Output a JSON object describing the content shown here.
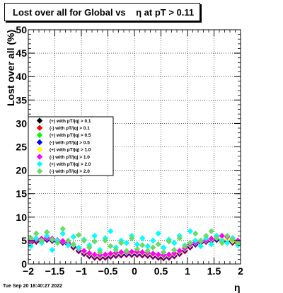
{
  "chart_data": {
    "type": "scatter",
    "title": "Lost over all for Global vs    η at pT > 0.11",
    "xlabel": "η",
    "ylabel": "Lost over all (%)",
    "xlim": [
      -2,
      2
    ],
    "ylim": [
      0,
      50
    ],
    "x_ticks": [
      -2,
      -1.5,
      -1,
      -0.5,
      0,
      0.5,
      1,
      1.5,
      2
    ],
    "x_tick_labels": [
      "−2",
      "−1.5",
      "−1",
      "−0.5",
      "0",
      "0.5",
      "1",
      "1.5",
      "2"
    ],
    "y_ticks": [
      0,
      5,
      10,
      15,
      20,
      25,
      30,
      35,
      40,
      45,
      50
    ],
    "y_tick_labels": [
      "0",
      "5",
      "10",
      "15",
      "20",
      "25",
      "30",
      "35",
      "40",
      "45",
      "50"
    ],
    "grid": true,
    "legend_position": "middle-left",
    "series": [
      {
        "name": "(+) with pT/|q| > 0.1",
        "color": "#000000",
        "marker": "diamond",
        "x": [
          -1.95,
          -1.85,
          -1.75,
          -1.65,
          -1.55,
          -1.45,
          -1.35,
          -1.25,
          -1.15,
          -1.05,
          -0.95,
          -0.85,
          -0.75,
          -0.65,
          -0.55,
          -0.45,
          -0.35,
          -0.25,
          -0.15,
          -0.05,
          0.05,
          0.15,
          0.25,
          0.35,
          0.45,
          0.55,
          0.65,
          0.75,
          0.85,
          0.95,
          1.05,
          1.15,
          1.25,
          1.35,
          1.45,
          1.55,
          1.65,
          1.75,
          1.85,
          1.95
        ],
        "y": [
          4.6,
          4.8,
          5.0,
          5.2,
          5.0,
          4.8,
          4.6,
          4.2,
          3.6,
          2.8,
          2.2,
          1.7,
          1.4,
          1.3,
          1.4,
          1.6,
          1.8,
          1.9,
          2.0,
          2.0,
          2.0,
          1.9,
          1.8,
          1.6,
          1.4,
          1.3,
          1.4,
          1.7,
          2.2,
          2.8,
          3.6,
          4.2,
          4.6,
          4.8,
          5.0,
          5.2,
          5.0,
          4.8,
          4.6,
          4.4
        ]
      },
      {
        "name": "(-) with pT/|q| > 0.1",
        "color": "#ff0000",
        "marker": "diamond",
        "x": [
          -1.95,
          -1.85,
          -1.75,
          -1.65,
          -1.55,
          -1.45,
          -1.35,
          -1.25,
          -1.15,
          -1.05,
          -0.95,
          -0.85,
          -0.75,
          -0.65,
          -0.55,
          -0.45,
          -0.35,
          -0.25,
          -0.15,
          -0.05,
          0.05,
          0.15,
          0.25,
          0.35,
          0.45,
          0.55,
          0.65,
          0.75,
          0.85,
          0.95,
          1.05,
          1.15,
          1.25,
          1.35,
          1.45,
          1.55,
          1.65,
          1.75,
          1.85,
          1.95
        ],
        "y": [
          4.5,
          4.7,
          4.9,
          5.1,
          4.9,
          4.7,
          4.5,
          4.1,
          3.5,
          2.7,
          2.1,
          1.6,
          1.3,
          1.2,
          1.3,
          1.5,
          1.7,
          1.8,
          1.9,
          1.9,
          1.9,
          1.8,
          1.7,
          1.5,
          1.3,
          1.2,
          1.3,
          1.6,
          2.1,
          2.7,
          3.5,
          4.1,
          4.5,
          4.7,
          4.9,
          5.1,
          4.9,
          4.7,
          4.5,
          4.3
        ]
      },
      {
        "name": "(+) with pT/|q| > 0.5",
        "color": "#00ff00",
        "marker": "diamond",
        "x": [
          -1.95,
          -1.85,
          -1.75,
          -1.65,
          -1.55,
          -1.45,
          -1.35,
          -1.25,
          -1.15,
          -1.05,
          -0.95,
          -0.85,
          -0.75,
          -0.65,
          -0.55,
          -0.45,
          -0.35,
          -0.25,
          -0.15,
          -0.05,
          0.05,
          0.15,
          0.25,
          0.35,
          0.45,
          0.55,
          0.65,
          0.75,
          0.85,
          0.95,
          1.05,
          1.15,
          1.25,
          1.35,
          1.45,
          1.55,
          1.65,
          1.75,
          1.85,
          1.95
        ],
        "y": [
          4.8,
          5.0,
          5.1,
          5.3,
          5.1,
          4.9,
          4.7,
          4.3,
          3.8,
          3.0,
          2.4,
          1.9,
          1.6,
          1.5,
          1.6,
          1.8,
          2.0,
          2.1,
          2.2,
          2.2,
          2.2,
          2.1,
          2.0,
          1.8,
          1.6,
          1.5,
          1.6,
          1.9,
          2.4,
          3.0,
          3.8,
          4.3,
          4.7,
          4.9,
          5.1,
          5.3,
          5.1,
          5.0,
          4.8,
          4.6
        ]
      },
      {
        "name": "(-) with pT/|q| > 0.5",
        "color": "#0000ff",
        "marker": "diamond",
        "x": [
          -1.95,
          -1.85,
          -1.75,
          -1.65,
          -1.55,
          -1.45,
          -1.35,
          -1.25,
          -1.15,
          -1.05,
          -0.95,
          -0.85,
          -0.75,
          -0.65,
          -0.55,
          -0.45,
          -0.35,
          -0.25,
          -0.15,
          -0.05,
          0.05,
          0.15,
          0.25,
          0.35,
          0.45,
          0.55,
          0.65,
          0.75,
          0.85,
          0.95,
          1.05,
          1.15,
          1.25,
          1.35,
          1.45,
          1.55,
          1.65,
          1.75,
          1.85,
          1.95
        ],
        "y": [
          4.7,
          4.9,
          5.0,
          5.2,
          5.0,
          4.8,
          4.6,
          4.2,
          3.7,
          2.9,
          2.3,
          1.8,
          1.5,
          1.4,
          1.5,
          1.7,
          1.9,
          2.0,
          2.1,
          2.1,
          2.1,
          2.0,
          1.9,
          1.7,
          1.5,
          1.4,
          1.5,
          1.8,
          2.3,
          2.9,
          3.7,
          4.2,
          4.6,
          4.8,
          5.0,
          5.2,
          5.0,
          4.9,
          4.7,
          4.5
        ]
      },
      {
        "name": "(+) with pT/|q| > 1.0",
        "color": "#ffff00",
        "marker": "diamond",
        "x": [
          -1.95,
          -1.85,
          -1.75,
          -1.65,
          -1.55,
          -1.45,
          -1.35,
          -1.25,
          -1.15,
          -1.05,
          -0.95,
          -0.85,
          -0.75,
          -0.65,
          -0.55,
          -0.45,
          -0.35,
          -0.25,
          -0.15,
          -0.05,
          0.05,
          0.15,
          0.25,
          0.35,
          0.45,
          0.55,
          0.65,
          0.75,
          0.85,
          0.95,
          1.05,
          1.15,
          1.25,
          1.35,
          1.45,
          1.55,
          1.65,
          1.75,
          1.85,
          1.95
        ],
        "y": [
          4.9,
          5.2,
          5.3,
          5.5,
          5.2,
          5.0,
          4.8,
          4.5,
          4.0,
          3.2,
          2.6,
          2.1,
          1.8,
          1.7,
          1.8,
          2.0,
          2.2,
          2.3,
          2.4,
          2.4,
          2.4,
          2.3,
          2.2,
          2.0,
          1.8,
          1.7,
          1.8,
          2.1,
          2.6,
          3.2,
          4.0,
          4.5,
          4.8,
          5.0,
          5.2,
          5.5,
          5.3,
          5.2,
          4.9,
          4.7
        ]
      },
      {
        "name": "(-) with pT/|q| > 1.0",
        "color": "#ff00ff",
        "marker": "diamond",
        "x": [
          -1.95,
          -1.85,
          -1.75,
          -1.65,
          -1.55,
          -1.45,
          -1.35,
          -1.25,
          -1.15,
          -1.05,
          -0.95,
          -0.85,
          -0.75,
          -0.65,
          -0.55,
          -0.45,
          -0.35,
          -0.25,
          -0.15,
          -0.05,
          0.05,
          0.15,
          0.25,
          0.35,
          0.45,
          0.55,
          0.65,
          0.75,
          0.85,
          0.95,
          1.05,
          1.15,
          1.25,
          1.35,
          1.45,
          1.55,
          1.65,
          1.75,
          1.85,
          1.95
        ],
        "y": [
          5.0,
          5.3,
          5.4,
          5.6,
          5.4,
          5.1,
          4.9,
          4.6,
          4.2,
          3.4,
          2.8,
          2.3,
          2.0,
          1.9,
          2.0,
          2.2,
          2.4,
          2.5,
          2.6,
          2.6,
          2.6,
          2.5,
          2.4,
          2.2,
          2.0,
          1.9,
          2.0,
          2.3,
          2.8,
          3.4,
          4.2,
          4.6,
          4.9,
          5.1,
          5.4,
          5.9,
          6.0,
          5.8,
          5.5,
          5.0
        ]
      },
      {
        "name": "(+) with pT/|q| > 2.0",
        "color": "#00ffff",
        "marker": "diamond",
        "x": [
          -1.95,
          -1.85,
          -1.75,
          -1.65,
          -1.55,
          -1.45,
          -1.35,
          -1.25,
          -1.15,
          -1.05,
          -0.95,
          -0.85,
          -0.75,
          -0.65,
          -0.55,
          -0.45,
          -0.35,
          -0.25,
          -0.15,
          -0.05,
          0.05,
          0.15,
          0.25,
          0.35,
          0.45,
          0.55,
          0.65,
          0.75,
          0.85,
          0.95,
          1.05,
          1.15,
          1.25,
          1.35,
          1.45,
          1.55,
          1.65,
          1.75,
          1.85,
          1.95
        ],
        "y": [
          3.8,
          5.5,
          4.5,
          6.0,
          3.0,
          5.0,
          6.5,
          4.0,
          5.8,
          3.5,
          5.2,
          4.0,
          6.0,
          3.0,
          5.5,
          7.0,
          3.5,
          5.0,
          4.5,
          6.0,
          4.2,
          5.5,
          3.8,
          5.0,
          6.5,
          3.5,
          5.2,
          4.5,
          6.0,
          4.0,
          7.0,
          5.0,
          3.8,
          5.5,
          4.2,
          6.0,
          5.0,
          4.5,
          5.5,
          4.0
        ]
      },
      {
        "name": "(-) with pT/|q| > 2.0",
        "color": "#66dd66",
        "marker": "diamond",
        "x": [
          -1.95,
          -1.85,
          -1.75,
          -1.65,
          -1.55,
          -1.45,
          -1.35,
          -1.25,
          -1.15,
          -1.05,
          -0.95,
          -0.85,
          -0.75,
          -0.65,
          -0.55,
          -0.45,
          -0.35,
          -0.25,
          -0.15,
          -0.05,
          0.05,
          0.15,
          0.25,
          0.35,
          0.45,
          0.55,
          0.65,
          0.75,
          0.85,
          0.95,
          1.05,
          1.15,
          1.25,
          1.35,
          1.45,
          1.55,
          1.65,
          1.75,
          1.85,
          1.95
        ],
        "y": [
          5.5,
          6.5,
          5.0,
          6.8,
          5.2,
          4.5,
          7.5,
          5.0,
          4.2,
          6.2,
          5.0,
          3.5,
          4.8,
          2.5,
          5.0,
          3.8,
          3.0,
          4.5,
          2.8,
          5.5,
          3.2,
          4.0,
          2.8,
          3.5,
          4.2,
          2.5,
          4.8,
          3.0,
          5.5,
          3.8,
          4.5,
          6.5,
          5.0,
          6.0,
          7.0,
          5.5,
          4.5,
          6.0,
          5.2,
          4.5
        ]
      }
    ]
  },
  "footer": {
    "timestamp": "Tue Sep 20 18:40:27 2022"
  }
}
